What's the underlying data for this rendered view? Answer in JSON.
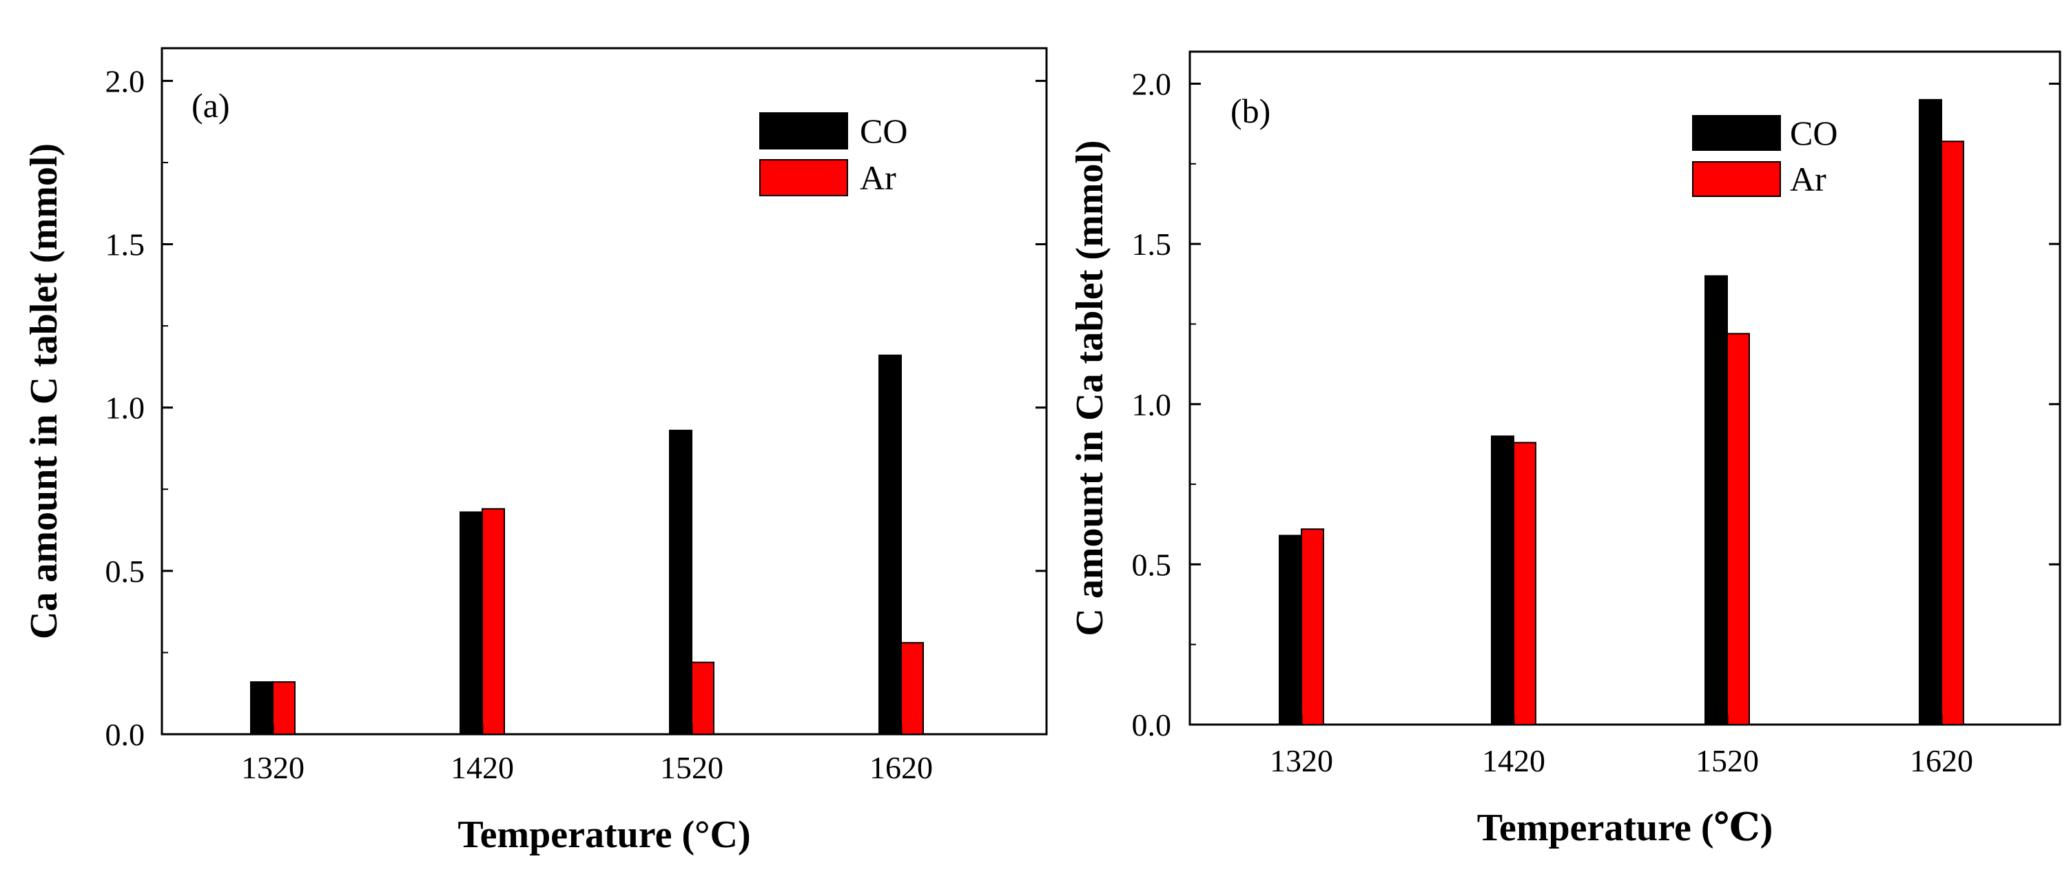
{
  "chart_data": [
    {
      "type": "bar",
      "panel_label": "(a)",
      "categories": [
        "1320",
        "1420",
        "1520",
        "1620"
      ],
      "series": [
        {
          "name": "CO",
          "color": "#000000",
          "values": [
            0.16,
            0.68,
            0.93,
            1.16
          ]
        },
        {
          "name": "Ar",
          "color": "#ff0000",
          "values": [
            0.16,
            0.69,
            0.22,
            0.28
          ]
        }
      ],
      "xlabel": "Temperature (°C)",
      "ylabel": "Ca amount in C tablet (mmol)",
      "ylim": [
        0,
        2.1
      ],
      "yticks": [
        "0.0",
        "0.5",
        "1.0",
        "1.5",
        "2.0"
      ],
      "legend_position": "top-right",
      "grid": false
    },
    {
      "type": "bar",
      "panel_label": "(b)",
      "categories": [
        "1320",
        "1420",
        "1520",
        "1620"
      ],
      "series": [
        {
          "name": "CO",
          "color": "#000000",
          "values": [
            0.59,
            0.9,
            1.4,
            1.95
          ]
        },
        {
          "name": "Ar",
          "color": "#ff0000",
          "values": [
            0.61,
            0.88,
            1.22,
            1.82
          ]
        }
      ],
      "xlabel": "Temperature (℃)",
      "ylabel": "C amount in Ca tablet (mmol)",
      "ylim": [
        0,
        2.1
      ],
      "yticks": [
        "0.0",
        "0.5",
        "1.0",
        "1.5",
        "2.0"
      ],
      "legend_position": "top-right",
      "grid": false
    }
  ]
}
